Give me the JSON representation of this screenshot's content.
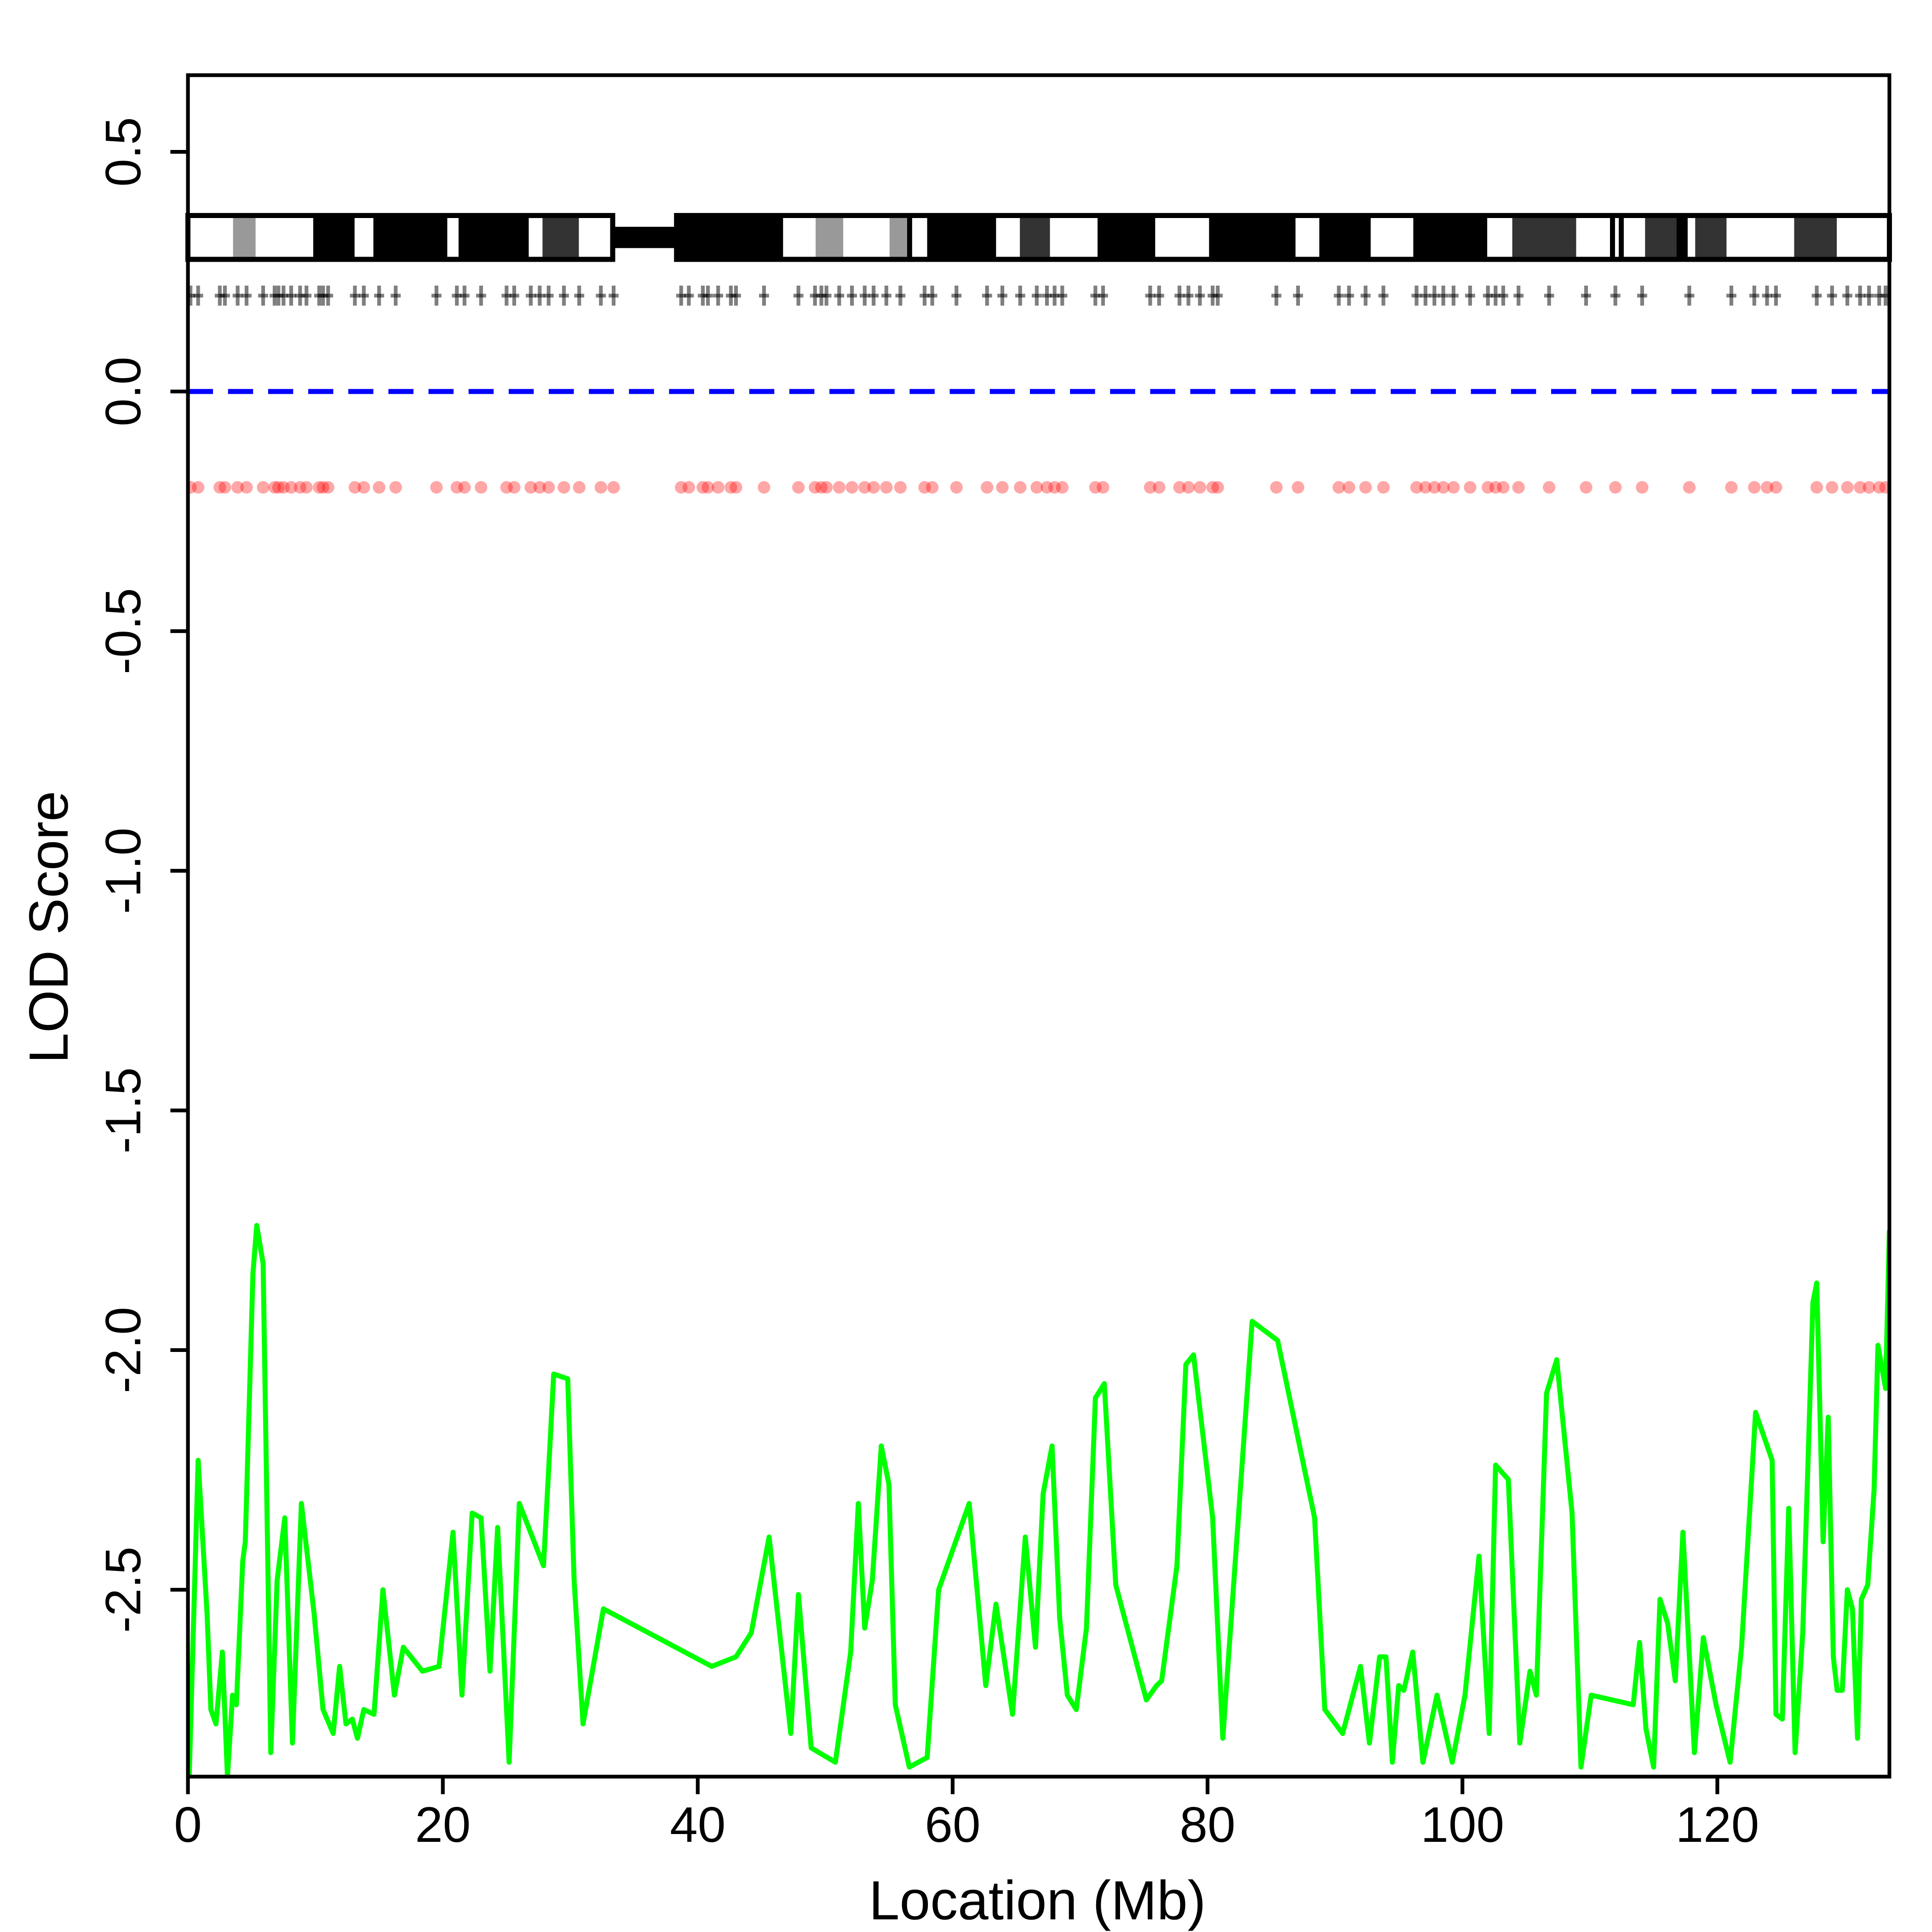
{
  "chart_data": {
    "type": "line",
    "xlabel": "Location (Mb)",
    "ylabel": "LOD Score",
    "xlim": [
      0,
      133.5
    ],
    "ylim": [
      -2.89,
      0.66
    ],
    "xticks": [
      0,
      20,
      40,
      60,
      80,
      100,
      120
    ],
    "yticks": [
      0.5,
      {
        "value": 0,
        "label": "0.0"
      },
      -0.5,
      {
        "value": -1,
        "label": "-1.0"
      },
      -1.5,
      {
        "value": -2,
        "label": "-2.0"
      },
      -2.5
    ],
    "color": "#00ff00",
    "x": [
      0.1,
      0.8,
      1.5,
      1.8,
      2.2,
      2.7,
      3.1,
      3.5,
      3.8,
      4.3,
      4.5,
      5.1,
      5.4,
      5.9,
      6.5,
      7.0,
      7.6,
      8.2,
      8.9,
      9.9,
      10.6,
      11.4,
      11.9,
      12.4,
      12.9,
      13.3,
      13.8,
      14.6,
      15.3,
      16.2,
      16.9,
      18.4,
      19.7,
      20.8,
      21.5,
      22.3,
      23.0,
      23.7,
      24.3,
      25.2,
      26.0,
      27.9,
      28.7,
      29.8,
      30.3,
      31.0,
      32.6,
      41.1,
      43.0,
      44.2,
      45.6,
      47.3,
      47.9,
      48.9,
      50.8,
      52.0,
      52.6,
      53.1,
      53.7,
      54.4,
      55.0,
      55.5,
      56.6,
      58.0,
      58.9,
      61.3,
      62.6,
      63.4,
      64.7,
      65.7,
      66.5,
      67.1,
      67.8,
      68.4,
      69.0,
      69.7,
      70.5,
      71.2,
      71.9,
      72.8,
      75.2,
      76.0,
      76.4,
      77.6,
      78.3,
      78.9,
      80.4,
      81.2,
      83.5,
      85.5,
      88.4,
      89.2,
      90.6,
      92.0,
      92.7,
      93.5,
      94.0,
      94.5,
      95.0,
      95.4,
      96.1,
      96.9,
      98.0,
      99.2,
      100.2,
      101.3,
      102.1,
      102.6,
      103.6,
      104.5,
      105.3,
      105.8,
      106.6,
      107.4,
      108.6,
      109.3,
      110.1,
      113.4,
      113.9,
      114.4,
      115.0,
      115.5,
      116.1,
      116.7,
      117.3,
      118.2,
      118.9,
      119.9,
      121.0,
      121.9,
      123.0,
      124.3,
      124.6,
      125.1,
      125.6,
      126.1,
      126.7,
      127.5,
      127.8,
      128.3,
      128.7,
      129.1,
      129.4,
      129.8,
      130.2,
      130.6,
      131.0,
      131.3,
      131.8,
      132.3,
      132.6,
      133.2,
      133.5
    ],
    "values": [
      -2.89,
      -2.23,
      -2.55,
      -2.75,
      -2.78,
      -2.63,
      -2.89,
      -2.72,
      -2.74,
      -2.44,
      -2.4,
      -1.84,
      -1.74,
      -1.82,
      -2.84,
      -2.48,
      -2.35,
      -2.82,
      -2.32,
      -2.55,
      -2.75,
      -2.8,
      -2.66,
      -2.78,
      -2.77,
      -2.81,
      -2.75,
      -2.76,
      -2.5,
      -2.72,
      -2.62,
      -2.67,
      -2.66,
      -2.38,
      -2.72,
      -2.34,
      -2.35,
      -2.67,
      -2.37,
      -2.86,
      -2.32,
      -2.45,
      -2.05,
      -2.06,
      -2.48,
      -2.78,
      -2.54,
      -2.66,
      -2.64,
      -2.59,
      -2.39,
      -2.8,
      -2.51,
      -2.83,
      -2.86,
      -2.63,
      -2.32,
      -2.58,
      -2.48,
      -2.2,
      -2.28,
      -2.74,
      -2.87,
      -2.85,
      -2.5,
      -2.32,
      -2.7,
      -2.53,
      -2.76,
      -2.39,
      -2.62,
      -2.3,
      -2.2,
      -2.56,
      -2.72,
      -2.75,
      -2.58,
      -2.1,
      -2.07,
      -2.49,
      -2.73,
      -2.7,
      -2.69,
      -2.45,
      -2.03,
      -2.01,
      -2.35,
      -2.81,
      -1.94,
      -1.98,
      -2.35,
      -2.75,
      -2.8,
      -2.66,
      -2.82,
      -2.64,
      -2.64,
      -2.86,
      -2.7,
      -2.71,
      -2.63,
      -2.86,
      -2.72,
      -2.86,
      -2.72,
      -2.43,
      -2.8,
      -2.24,
      -2.27,
      -2.82,
      -2.67,
      -2.72,
      -2.09,
      -2.02,
      -2.34,
      -2.87,
      -2.72,
      -2.74,
      -2.61,
      -2.79,
      -2.87,
      -2.52,
      -2.57,
      -2.69,
      -2.38,
      -2.84,
      -2.6,
      -2.74,
      -2.86,
      -2.62,
      -2.13,
      -2.23,
      -2.76,
      -2.77,
      -2.33,
      -2.84,
      -2.59,
      -1.9,
      -1.86,
      -2.4,
      -2.14,
      -2.64,
      -2.71,
      -2.71,
      -2.5,
      -2.54,
      -2.81,
      -2.52,
      -2.49,
      -2.29,
      -1.99,
      -2.08,
      -1.75
    ],
    "reference_y": 0,
    "reference_color": "#0000ff",
    "marker_y": -0.2,
    "marker_color": "#ff0000",
    "tick_y": 0.2,
    "marker_x": [
      0.2,
      0.8,
      2.5,
      2.9,
      3.9,
      4.6,
      5.9,
      6.8,
      7.1,
      7.5,
      8.1,
      8.8,
      9.3,
      10.3,
      10.6,
      11.0,
      13.1,
      13.8,
      15.0,
      16.3,
      19.5,
      21.1,
      21.7,
      23.0,
      25.0,
      25.6,
      26.9,
      27.6,
      28.3,
      29.5,
      30.7,
      32.4,
      33.4,
      38.7,
      39.3,
      40.4,
      40.8,
      41.6,
      42.6,
      43.0,
      45.2,
      47.9,
      49.2,
      49.7,
      50.1,
      51.1,
      52.1,
      53.1,
      53.8,
      54.8,
      55.9,
      57.8,
      58.4,
      60.3,
      62.7,
      63.9,
      65.3,
      66.6,
      67.4,
      68.0,
      68.6,
      71.2,
      71.8,
      75.5,
      76.2,
      77.8,
      78.5,
      79.4,
      80.4,
      80.8,
      85.4,
      87.1,
      90.3,
      91.1,
      92.4,
      93.8,
      96.4,
      97.1,
      97.8,
      98.5,
      99.3,
      100.6,
      102.0,
      102.6,
      103.2,
      104.4,
      106.8,
      109.7,
      112.0,
      114.1,
      117.8,
      121.1,
      122.9,
      123.9,
      124.6,
      127.8,
      129.0,
      130.2,
      131.2,
      131.9,
      132.7,
      133.2
    ]
  }
}
